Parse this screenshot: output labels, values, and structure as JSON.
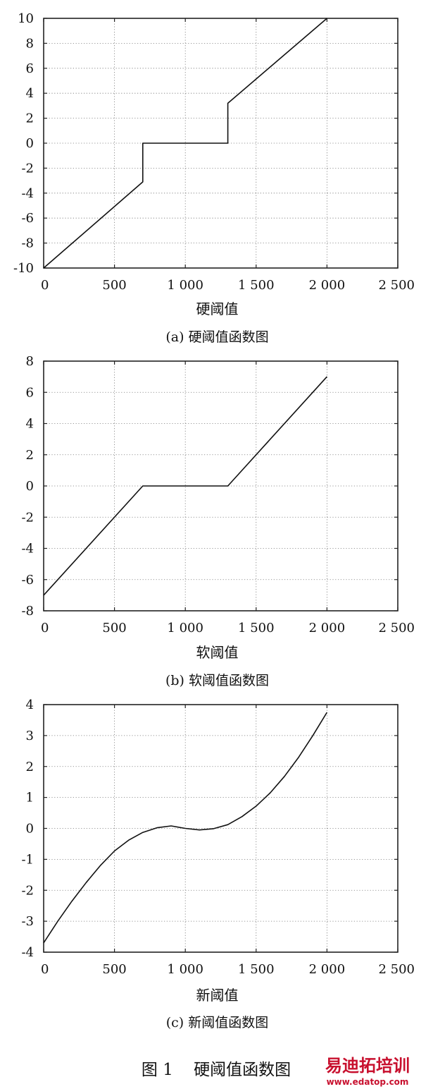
{
  "chart_data": [
    {
      "type": "line",
      "xlabel": "硬阈值",
      "caption": "(a)  硬阈值函数图",
      "xlim": [
        0,
        2500
      ],
      "ylim": [
        -10,
        10
      ],
      "xticks": [
        0,
        500,
        1000,
        1500,
        2000,
        2500
      ],
      "xtick_labels": [
        "0",
        "500",
        "1 000",
        "1 500",
        "2 000",
        "2 500"
      ],
      "yticks": [
        10,
        8,
        6,
        4,
        2,
        0,
        -2,
        -4,
        -6,
        -8,
        -10
      ],
      "ytick_labels": [
        "10",
        "8",
        "6",
        "4",
        "2",
        "0",
        "-2",
        "-4",
        "-6",
        "-8",
        "-10"
      ],
      "grid": true,
      "series": [
        {
          "x": [
            0,
            700,
            700,
            1300,
            1300,
            2000
          ],
          "y": [
            -10,
            -3.1,
            0,
            0,
            3.2,
            10
          ]
        }
      ]
    },
    {
      "type": "line",
      "xlabel": "软阈值",
      "caption": "(b)  软阈值函数图",
      "xlim": [
        0,
        2500
      ],
      "ylim": [
        -8,
        8
      ],
      "xticks": [
        0,
        500,
        1000,
        1500,
        2000,
        2500
      ],
      "xtick_labels": [
        "0",
        "500",
        "1 000",
        "1 500",
        "2 000",
        "2 500"
      ],
      "yticks": [
        8,
        6,
        4,
        2,
        0,
        -2,
        -4,
        -6,
        -8
      ],
      "ytick_labels": [
        "8",
        "6",
        "4",
        "2",
        "0",
        "-2",
        "-4",
        "-6",
        "-8"
      ],
      "grid": true,
      "series": [
        {
          "x": [
            0,
            700,
            1300,
            2000
          ],
          "y": [
            -7,
            0,
            0,
            7
          ]
        }
      ]
    },
    {
      "type": "line",
      "xlabel": "新阈值",
      "caption": "(c)  新阈值函数图",
      "xlim": [
        0,
        2500
      ],
      "ylim": [
        -4,
        4
      ],
      "xticks": [
        0,
        500,
        1000,
        1500,
        2000,
        2500
      ],
      "xtick_labels": [
        "0",
        "500",
        "1 000",
        "1 500",
        "2 000",
        "2 500"
      ],
      "yticks": [
        4,
        3,
        2,
        1,
        0,
        -1,
        -2,
        -3,
        -4
      ],
      "ytick_labels": [
        "4",
        "3",
        "2",
        "1",
        "0",
        "-1",
        "-2",
        "-3",
        "-4"
      ],
      "grid": true,
      "series": [
        {
          "x": [
            0,
            100,
            200,
            300,
            400,
            500,
            600,
            700,
            800,
            900,
            1000,
            1100,
            1200,
            1300,
            1400,
            1500,
            1600,
            1700,
            1800,
            1900,
            2000
          ],
          "y": [
            -3.7,
            -3.0,
            -2.35,
            -1.75,
            -1.2,
            -0.73,
            -0.38,
            -0.13,
            0.02,
            0.08,
            0.0,
            -0.05,
            -0.01,
            0.12,
            0.38,
            0.72,
            1.15,
            1.68,
            2.3,
            3.0,
            3.75
          ]
        }
      ]
    }
  ],
  "figure_caption": "图 1    硬阈值函数图",
  "watermark": {
    "text": "易迪拓培训",
    "url": "www.edatop.com",
    "color": "#c8102e"
  }
}
